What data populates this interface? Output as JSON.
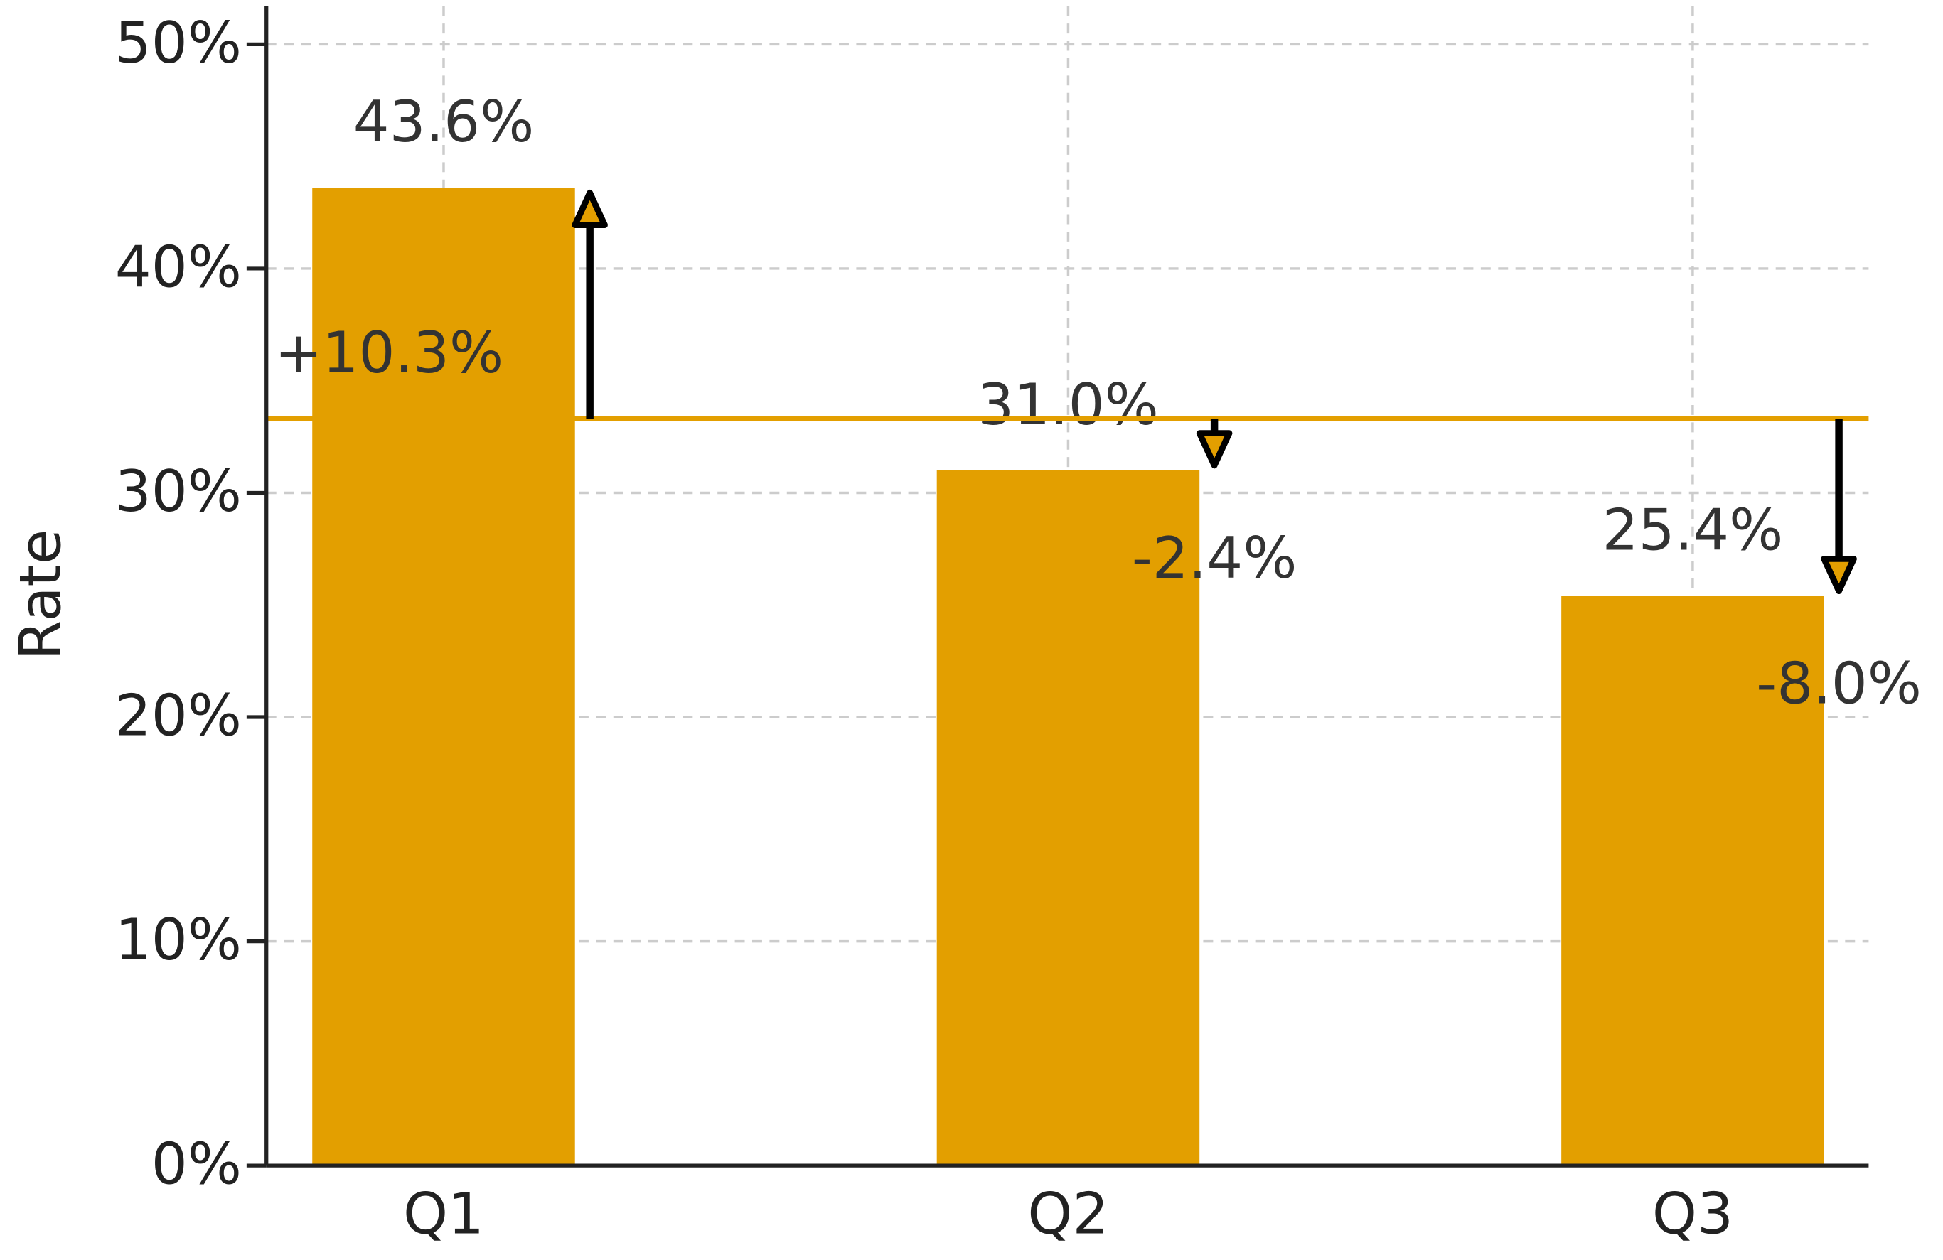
{
  "chart_data": {
    "type": "bar",
    "y_label": "Rate",
    "categories": [
      "Q1",
      "Q2",
      "Q3"
    ],
    "values": [
      43.6,
      31.0,
      25.4
    ],
    "value_labels": [
      "43.6%",
      "31.0%",
      "25.4%"
    ],
    "color": "#e39f00",
    "ylim": [
      0,
      51.7
    ],
    "yticks": [
      {
        "value": 0,
        "label": "0%"
      },
      {
        "value": 10,
        "label": "10%"
      },
      {
        "value": 20,
        "label": "20%"
      },
      {
        "value": 30,
        "label": "30%"
      },
      {
        "value": 40,
        "label": "40%"
      },
      {
        "value": 50,
        "label": "50%"
      }
    ],
    "grid": true,
    "reference_line": {
      "value": 33.3,
      "color": "#e39f00"
    },
    "deltas": {
      "values": [
        10.3,
        -2.4,
        -8.0
      ],
      "labels": [
        "+10.3%",
        "-2.4%",
        "-8.0%"
      ],
      "color": "#000000"
    }
  }
}
